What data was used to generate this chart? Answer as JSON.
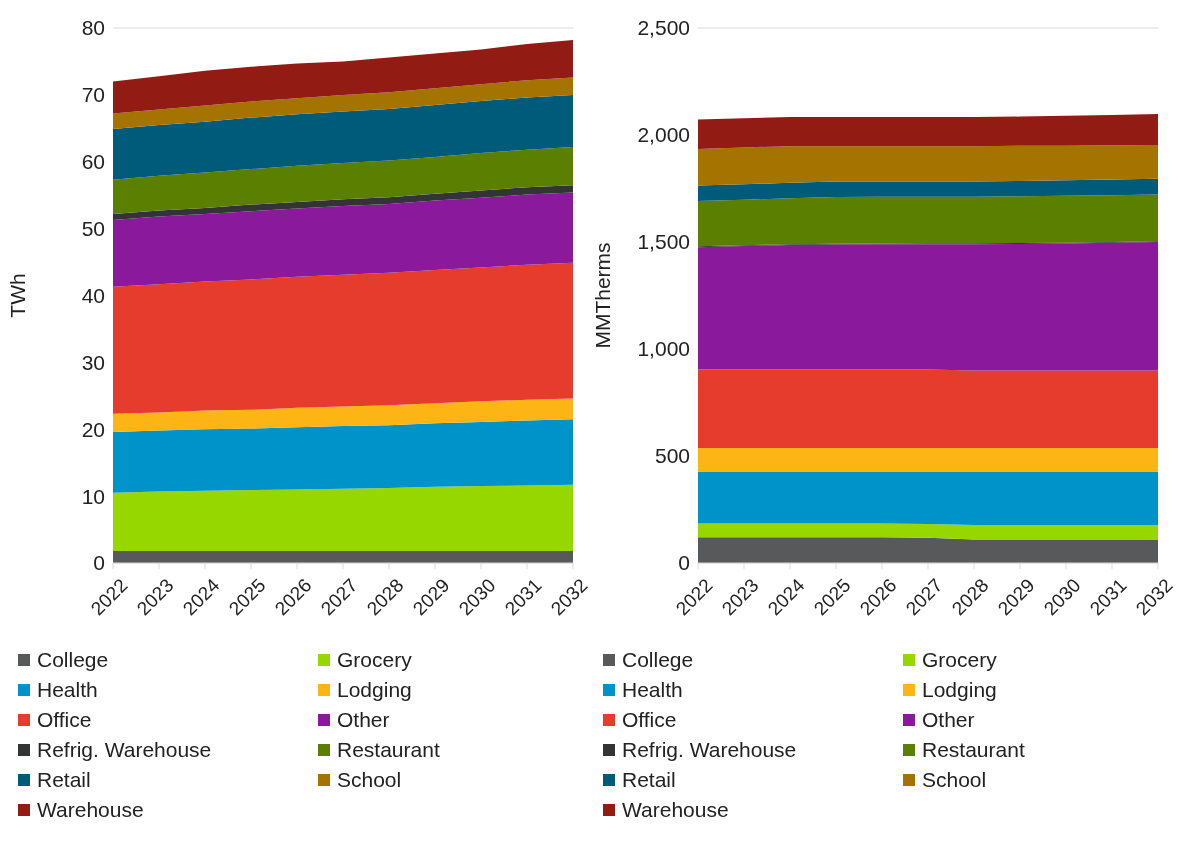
{
  "chart_data": [
    {
      "type": "area",
      "ylabel": "TWh",
      "stacked": true,
      "grid": "y",
      "legend": "bottom",
      "categories": [
        "2022",
        "2023",
        "2024",
        "2025",
        "2026",
        "2027",
        "2028",
        "2029",
        "2030",
        "2031",
        "2032"
      ],
      "ylim": [
        0,
        80
      ],
      "yticks": [
        0,
        10,
        20,
        30,
        40,
        50,
        60,
        70,
        80
      ],
      "series": [
        {
          "name": "College",
          "color": "#58595b",
          "values": [
            1.8,
            1.8,
            1.8,
            1.8,
            1.8,
            1.8,
            1.8,
            1.8,
            1.8,
            1.8,
            1.8
          ]
        },
        {
          "name": "Grocery",
          "color": "#97d700",
          "values": [
            8.7,
            8.9,
            9.0,
            9.1,
            9.2,
            9.3,
            9.4,
            9.6,
            9.7,
            9.8,
            9.9
          ]
        },
        {
          "name": "Health",
          "color": "#0093c9",
          "values": [
            9.1,
            9.1,
            9.2,
            9.2,
            9.3,
            9.4,
            9.4,
            9.5,
            9.6,
            9.7,
            9.8
          ]
        },
        {
          "name": "Lodging",
          "color": "#fdb515",
          "values": [
            2.7,
            2.7,
            2.8,
            2.8,
            2.9,
            2.9,
            3.0,
            3.0,
            3.1,
            3.1,
            3.1
          ]
        },
        {
          "name": "Office",
          "color": "#e53c2e",
          "values": [
            19.0,
            19.2,
            19.3,
            19.5,
            19.6,
            19.7,
            19.8,
            19.9,
            20.0,
            20.2,
            20.3
          ]
        },
        {
          "name": "Other",
          "color": "#8a1a9b",
          "values": [
            10.0,
            10.1,
            10.1,
            10.2,
            10.2,
            10.3,
            10.3,
            10.4,
            10.4,
            10.5,
            10.5
          ]
        },
        {
          "name": "Refrig. Warehouse",
          "color": "#333436",
          "values": [
            0.9,
            0.9,
            0.9,
            1.0,
            1.0,
            1.0,
            1.0,
            1.0,
            1.1,
            1.1,
            1.1
          ]
        },
        {
          "name": "Restaurant",
          "color": "#5b7f00",
          "values": [
            5.1,
            5.2,
            5.3,
            5.3,
            5.4,
            5.4,
            5.5,
            5.5,
            5.6,
            5.6,
            5.7
          ]
        },
        {
          "name": "Retail",
          "color": "#005a7a",
          "values": [
            7.6,
            7.6,
            7.6,
            7.7,
            7.7,
            7.7,
            7.7,
            7.8,
            7.8,
            7.8,
            7.8
          ]
        },
        {
          "name": "School",
          "color": "#a57300",
          "values": [
            2.3,
            2.3,
            2.4,
            2.4,
            2.4,
            2.5,
            2.5,
            2.5,
            2.5,
            2.6,
            2.6
          ]
        },
        {
          "name": "Warehouse",
          "color": "#921b13",
          "values": [
            4.8,
            5.0,
            5.2,
            5.2,
            5.2,
            5.0,
            5.2,
            5.2,
            5.2,
            5.4,
            5.6
          ]
        }
      ]
    },
    {
      "type": "area",
      "ylabel": "MMTherms",
      "stacked": true,
      "grid": "y",
      "legend": "bottom",
      "categories": [
        "2022",
        "2023",
        "2024",
        "2025",
        "2026",
        "2027",
        "2028",
        "2029",
        "2030",
        "2031",
        "2032"
      ],
      "ylim": [
        0,
        2500
      ],
      "yticks": [
        0,
        500,
        {
          "value": 1000,
          "label": "1,000"
        },
        {
          "value": 1500,
          "label": "1,500"
        },
        {
          "value": 2000,
          "label": "2,000"
        },
        {
          "value": 2500,
          "label": "2,500"
        }
      ],
      "series": [
        {
          "name": "College",
          "color": "#58595b",
          "values": [
            120,
            120,
            120,
            120,
            120,
            118,
            110,
            110,
            110,
            110,
            110
          ]
        },
        {
          "name": "Grocery",
          "color": "#97d700",
          "values": [
            64,
            64,
            64,
            64,
            64,
            64,
            68,
            68,
            68,
            68,
            68
          ]
        },
        {
          "name": "Health",
          "color": "#0093c9",
          "values": [
            243,
            243,
            243,
            243,
            243,
            245,
            249,
            249,
            249,
            249,
            249
          ]
        },
        {
          "name": "Lodging",
          "color": "#fdb515",
          "values": [
            110,
            110,
            110,
            110,
            110,
            110,
            110,
            110,
            110,
            110,
            110
          ]
        },
        {
          "name": "Office",
          "color": "#e53c2e",
          "values": [
            367,
            367,
            367,
            367,
            367,
            367,
            362,
            362,
            362,
            362,
            362
          ]
        },
        {
          "name": "Other",
          "color": "#8a1a9b",
          "values": [
            572,
            577,
            582,
            584,
            585,
            586,
            591,
            592,
            594,
            597,
            601
          ]
        },
        {
          "name": "Refrig. Warehouse",
          "color": "#333436",
          "values": [
            4,
            4,
            4,
            4,
            4,
            4,
            4,
            4,
            4,
            4,
            4
          ]
        },
        {
          "name": "Restaurant",
          "color": "#5b7f00",
          "values": [
            212,
            213,
            214,
            218,
            218,
            218,
            218,
            219,
            219,
            219,
            218
          ]
        },
        {
          "name": "Retail",
          "color": "#005a7a",
          "values": [
            72,
            72,
            73,
            73,
            72,
            71,
            71,
            71,
            72,
            73,
            73
          ]
        },
        {
          "name": "School",
          "color": "#a57300",
          "values": [
            171,
            172,
            171,
            165,
            165,
            165,
            165,
            165,
            162,
            160,
            158
          ]
        },
        {
          "name": "Warehouse",
          "color": "#921b13",
          "values": [
            137,
            136,
            136,
            136,
            136,
            136,
            136,
            136,
            140,
            142,
            145
          ]
        }
      ]
    }
  ]
}
